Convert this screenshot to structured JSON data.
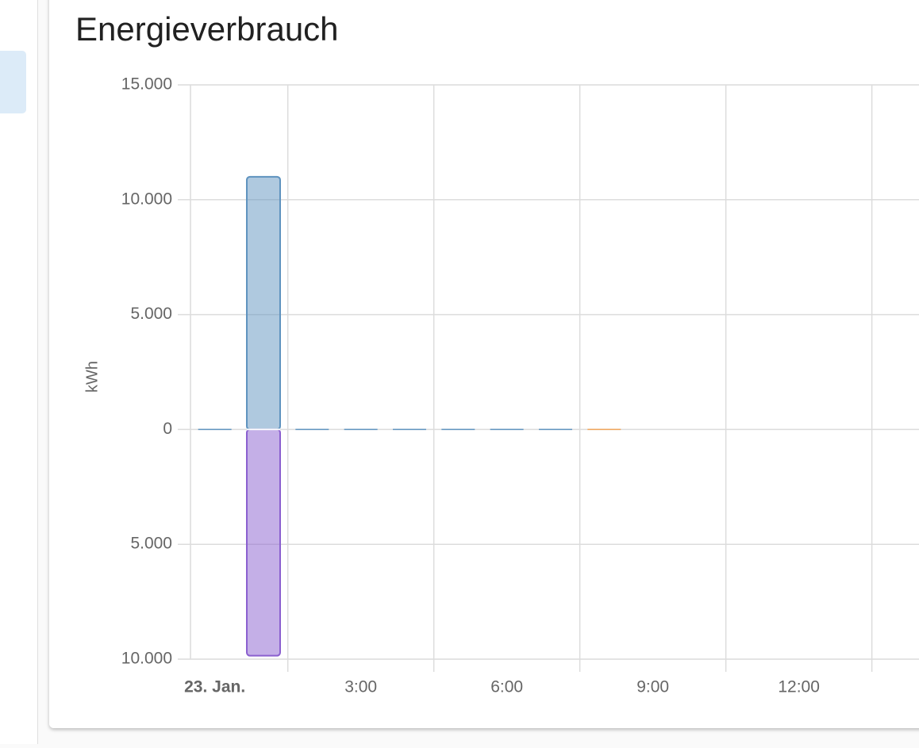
{
  "chart_data": {
    "type": "bar",
    "title": "Energieverbrauch",
    "y_label": "kWh",
    "categories": [
      "23. Jan.",
      null,
      null,
      "3:00",
      null,
      null,
      "6:00",
      null,
      null,
      "9:00",
      null,
      null,
      "12:00",
      null,
      null
    ],
    "series": [
      {
        "color": "#5f93bf",
        "values": [
          0,
          11000,
          0,
          0,
          0,
          0,
          0,
          0,
          null,
          null,
          null,
          null,
          null,
          null,
          null
        ]
      },
      {
        "color": "#8a5fcf",
        "values": [
          null,
          -9850,
          null,
          null,
          null,
          null,
          null,
          null,
          null,
          null,
          null,
          null,
          null,
          null,
          null
        ]
      },
      {
        "color": "#f0a45a",
        "values": [
          null,
          null,
          null,
          null,
          null,
          null,
          null,
          null,
          0,
          null,
          null,
          null,
          null,
          null,
          null
        ]
      }
    ],
    "ylim": [
      -10000,
      15000
    ],
    "yticks": [
      {
        "value": -10000,
        "label": "10.000"
      },
      {
        "value": -5000,
        "label": "5.000"
      },
      0,
      {
        "value": 5000,
        "label": "5.000"
      },
      {
        "value": 10000,
        "label": "10.000"
      },
      {
        "value": 15000,
        "label": "15.000"
      }
    ],
    "grid": true
  }
}
